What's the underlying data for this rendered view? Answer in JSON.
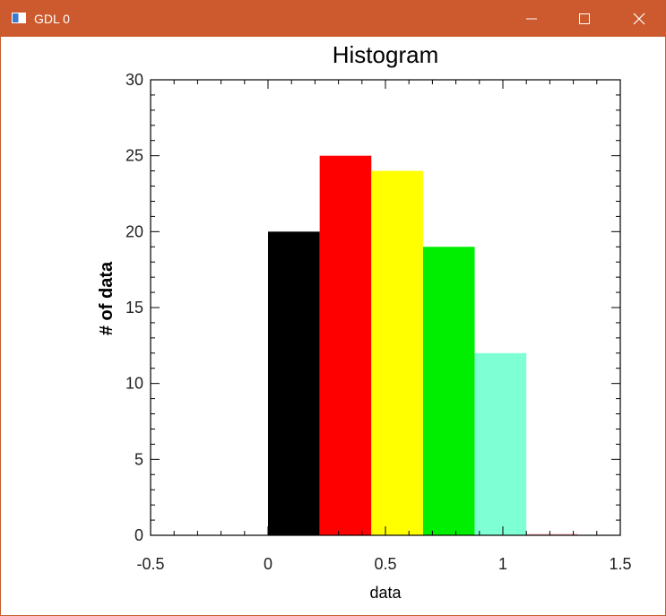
{
  "window": {
    "title": "GDL 0",
    "icon": "gdl-window-icon",
    "controls": [
      "minimize-icon",
      "maximize-icon",
      "close-icon"
    ]
  },
  "colors": {
    "titlebar": "#cc5a2e",
    "axis": "#000000",
    "background": "#ffffff"
  },
  "chart_data": {
    "type": "bar",
    "title": "Histogram",
    "xlabel": "data",
    "ylabel": "# of data",
    "xlim": [
      -0.5,
      1.5
    ],
    "ylim": [
      0,
      30
    ],
    "xticks": [
      "-0.5",
      "0",
      "0.5",
      "1",
      "1.5"
    ],
    "yticks": [
      "0",
      "5",
      "10",
      "15",
      "20",
      "25",
      "30"
    ],
    "bins": [
      {
        "start": 0.0,
        "end": 0.22,
        "value": 20,
        "color": "#000000"
      },
      {
        "start": 0.22,
        "end": 0.44,
        "value": 25,
        "color": "#ff0000"
      },
      {
        "start": 0.44,
        "end": 0.66,
        "value": 24,
        "color": "#ffff00"
      },
      {
        "start": 0.66,
        "end": 0.88,
        "value": 19,
        "color": "#00ee00"
      },
      {
        "start": 0.88,
        "end": 1.1,
        "value": 12,
        "color": "#7fffd4"
      },
      {
        "start": 1.1,
        "end": 1.32,
        "value": 0,
        "color": "#ffc0cb"
      }
    ],
    "grid": false,
    "legend": "none"
  }
}
